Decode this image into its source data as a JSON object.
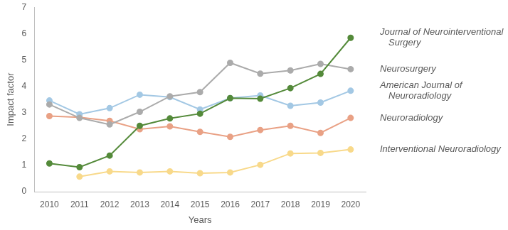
{
  "chart_data": {
    "type": "line",
    "x_label": "Years",
    "y_label": "Impact factor",
    "categories": [
      "2010",
      "2011",
      "2012",
      "2013",
      "2014",
      "2015",
      "2016",
      "2017",
      "2018",
      "2019",
      "2020"
    ],
    "ylim": [
      0,
      7
    ],
    "yticks": [
      0,
      1,
      2,
      3,
      4,
      5,
      6,
      7
    ],
    "grid": false,
    "marker": "circle",
    "line_style": "solid",
    "series": [
      {
        "name": "Journal of Neurointerventional Surgery",
        "color": "#548a3a",
        "values": [
          1.07,
          0.93,
          1.37,
          2.5,
          2.78,
          2.96,
          3.55,
          3.53,
          3.93,
          4.47,
          5.84
        ]
      },
      {
        "name": "Neurosurgery",
        "color": "#ababab",
        "values": [
          3.31,
          2.8,
          2.55,
          3.03,
          3.62,
          3.78,
          4.89,
          4.48,
          4.6,
          4.85,
          4.65
        ]
      },
      {
        "name": "American Journal of Neuroradiology",
        "color": "#a3c8e4",
        "values": [
          3.46,
          2.94,
          3.17,
          3.68,
          3.59,
          3.12,
          3.55,
          3.65,
          3.26,
          3.38,
          3.83
        ]
      },
      {
        "name": "Neuroradiology",
        "color": "#e9a185",
        "values": [
          2.87,
          2.82,
          2.69,
          2.37,
          2.48,
          2.27,
          2.08,
          2.34,
          2.5,
          2.23,
          2.8
        ]
      },
      {
        "name": "Interventional Neuroradiology",
        "color": "#f8d98a",
        "values": [
          null,
          0.57,
          0.77,
          0.73,
          0.77,
          0.7,
          0.73,
          1.02,
          1.45,
          1.47,
          1.6
        ]
      }
    ]
  }
}
